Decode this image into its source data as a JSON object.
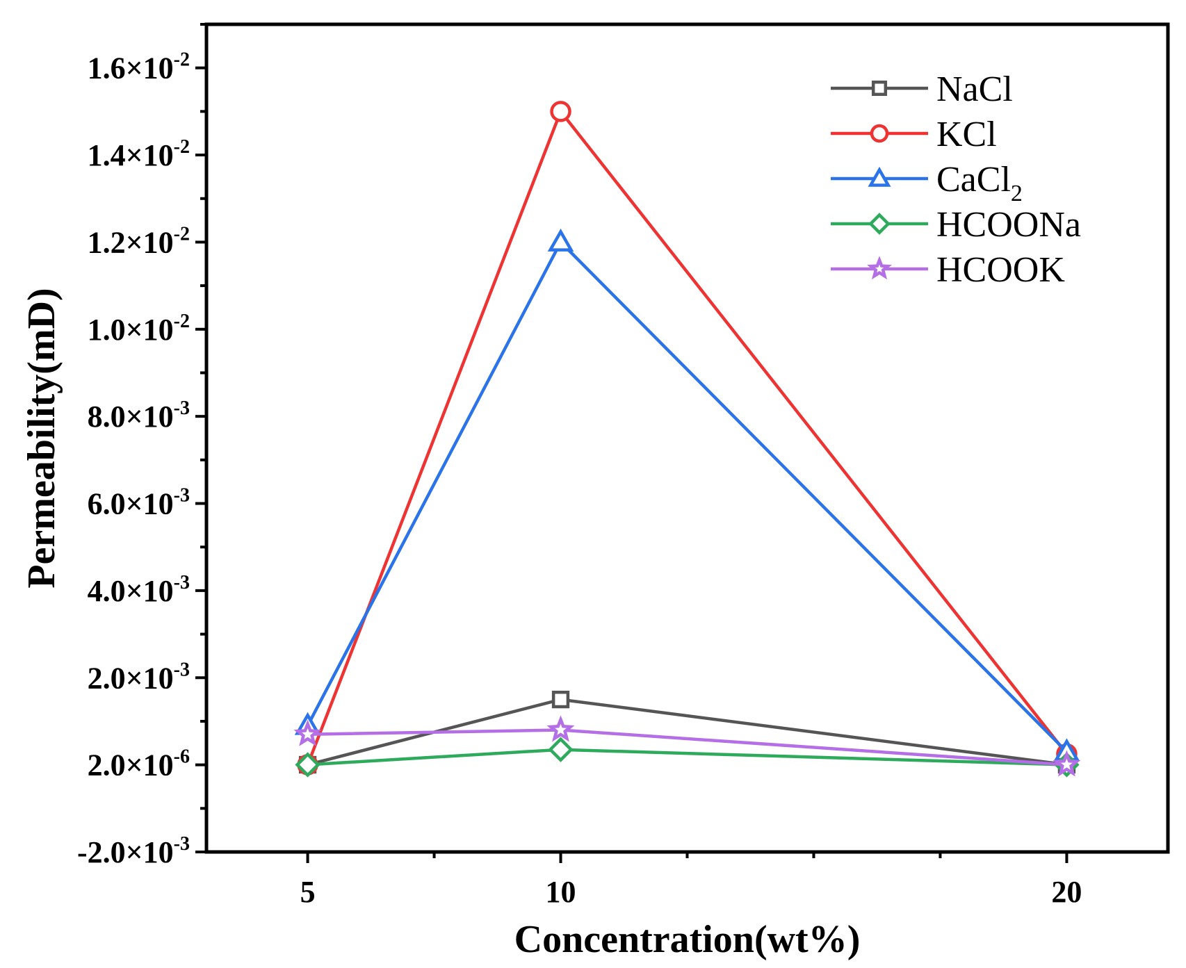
{
  "chart_data": {
    "type": "line",
    "title": "",
    "xlabel": "Concentration(wt%)",
    "ylabel": "Permeability(mD)",
    "x": [
      5,
      10,
      20
    ],
    "xticks": [
      "5",
      "10",
      "20"
    ],
    "xlim": [
      3,
      22
    ],
    "ylim": [
      -0.002,
      0.017
    ],
    "yticks": [
      {
        "value": -0.002,
        "mant": "-2.0",
        "exp": "-3"
      },
      {
        "value": 2e-06,
        "mant": "2.0",
        "exp": "-6"
      },
      {
        "value": 0.002,
        "mant": "2.0",
        "exp": "-3"
      },
      {
        "value": 0.004,
        "mant": "4.0",
        "exp": "-3"
      },
      {
        "value": 0.006,
        "mant": "6.0",
        "exp": "-3"
      },
      {
        "value": 0.008,
        "mant": "8.0",
        "exp": "-3"
      },
      {
        "value": 0.01,
        "mant": "1.0",
        "exp": "-2"
      },
      {
        "value": 0.012,
        "mant": "1.2",
        "exp": "-2"
      },
      {
        "value": 0.014,
        "mant": "1.4",
        "exp": "-2"
      },
      {
        "value": 0.016,
        "mant": "1.6",
        "exp": "-2"
      }
    ],
    "times_sign": "×10",
    "legend_position": "top-right",
    "series": [
      {
        "name": "NaCl",
        "sub": "",
        "color": "#555555",
        "marker": "square",
        "values": [
          2e-06,
          0.0015,
          2e-06
        ]
      },
      {
        "name": "KCl",
        "sub": "",
        "color": "#ee3333",
        "marker": "circle",
        "values": [
          2e-06,
          0.015,
          0.00025
        ]
      },
      {
        "name": "CaCl",
        "sub": "2",
        "color": "#2a73e8",
        "marker": "triangle",
        "values": [
          0.0009,
          0.012,
          0.0003
        ]
      },
      {
        "name": "HCOONa",
        "sub": "",
        "color": "#2eaa5c",
        "marker": "diamond",
        "values": [
          2e-06,
          0.00035,
          2e-06
        ]
      },
      {
        "name": "HCOOK",
        "sub": "",
        "color": "#b46ee6",
        "marker": "star",
        "values": [
          0.0007,
          0.0008,
          2e-06
        ]
      }
    ]
  }
}
